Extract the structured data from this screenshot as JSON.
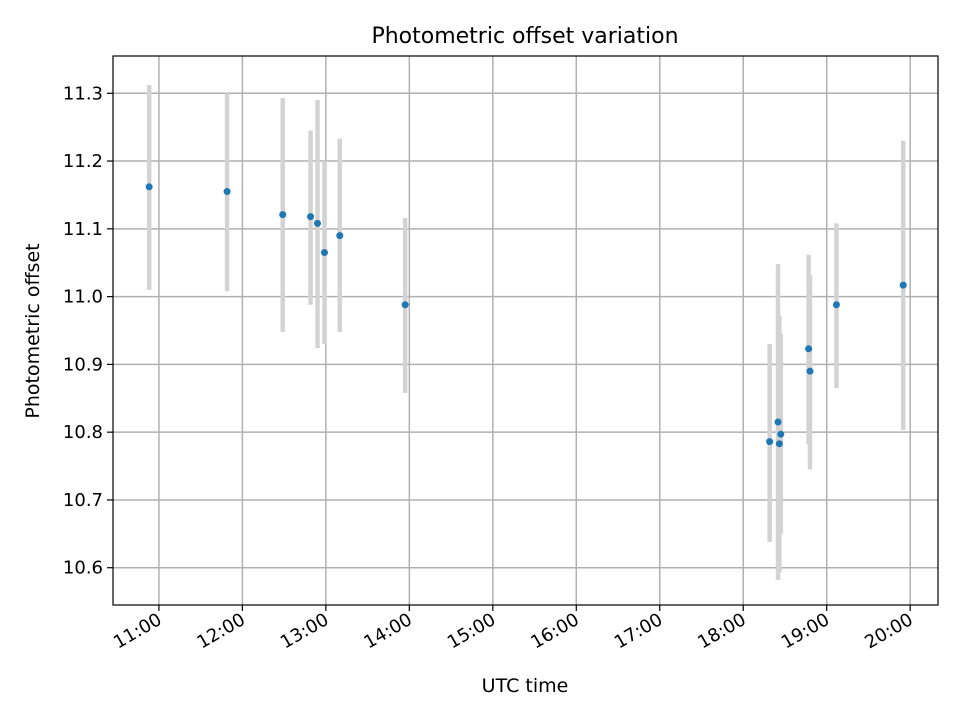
{
  "chart_data": {
    "type": "scatter",
    "title": "Photometric offset variation",
    "xlabel": "UTC time",
    "ylabel": "Photometric offset",
    "xlim": [
      "10:27",
      "20:20"
    ],
    "ylim": [
      10.545,
      11.355
    ],
    "x_ticks": [
      "11:00",
      "12:00",
      "13:00",
      "14:00",
      "15:00",
      "16:00",
      "17:00",
      "18:00",
      "19:00",
      "20:00"
    ],
    "y_ticks": [
      "10.6",
      "10.7",
      "10.8",
      "10.9",
      "11.0",
      "11.1",
      "11.2",
      "11.3"
    ],
    "grid": true,
    "colors": {
      "point": "#1f77b4",
      "error_bar": "#d3d3d3",
      "grid": "#b0b0b0"
    },
    "points": [
      {
        "x": "10:53",
        "y": 11.162,
        "yerr_low": 11.01,
        "yerr_high": 11.312
      },
      {
        "x": "11:49",
        "y": 11.155,
        "yerr_low": 11.008,
        "yerr_high": 11.3
      },
      {
        "x": "12:29",
        "y": 11.121,
        "yerr_low": 10.948,
        "yerr_high": 11.293
      },
      {
        "x": "12:49",
        "y": 11.118,
        "yerr_low": 10.988,
        "yerr_high": 11.245
      },
      {
        "x": "12:54",
        "y": 11.108,
        "yerr_low": 10.924,
        "yerr_high": 11.29
      },
      {
        "x": "12:59",
        "y": 11.065,
        "yerr_low": 10.93,
        "yerr_high": 11.2
      },
      {
        "x": "13:10",
        "y": 11.09,
        "yerr_low": 10.948,
        "yerr_high": 11.233
      },
      {
        "x": "13:57",
        "y": 10.988,
        "yerr_low": 10.858,
        "yerr_high": 11.116
      },
      {
        "x": "18:19",
        "y": 10.786,
        "yerr_low": 10.638,
        "yerr_high": 10.93
      },
      {
        "x": "18:25",
        "y": 10.815,
        "yerr_low": 10.582,
        "yerr_high": 11.048
      },
      {
        "x": "18:26",
        "y": 10.783,
        "yerr_low": 10.593,
        "yerr_high": 10.972
      },
      {
        "x": "18:27",
        "y": 10.797,
        "yerr_low": 10.65,
        "yerr_high": 10.945
      },
      {
        "x": "18:47",
        "y": 10.923,
        "yerr_low": 10.782,
        "yerr_high": 11.062
      },
      {
        "x": "18:48",
        "y": 10.89,
        "yerr_low": 10.745,
        "yerr_high": 11.032
      },
      {
        "x": "19:07",
        "y": 10.988,
        "yerr_low": 10.865,
        "yerr_high": 11.108
      },
      {
        "x": "19:55",
        "y": 11.017,
        "yerr_low": 10.803,
        "yerr_high": 11.23
      }
    ]
  }
}
